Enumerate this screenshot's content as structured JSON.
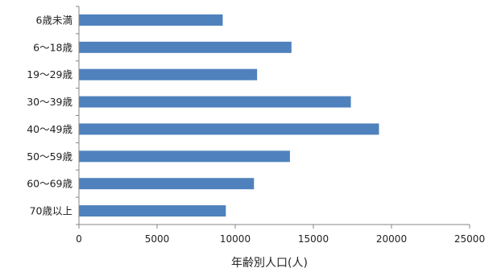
{
  "chart_data": {
    "type": "bar",
    "orientation": "horizontal",
    "categories": [
      "6歳未満",
      "6〜18歳",
      "19〜29歳",
      "30〜39歳",
      "40〜49歳",
      "50〜59歳",
      "60〜69歳",
      "70歳以上"
    ],
    "values": [
      9200,
      13600,
      11400,
      17400,
      19200,
      13500,
      11200,
      9400
    ],
    "xlabel": "年齢別人口(人)",
    "ylabel": "",
    "xlim": [
      0,
      25000
    ],
    "xticks": [
      "0",
      "5000",
      "10000",
      "15000",
      "20000",
      "25000"
    ],
    "grid": false,
    "legend": "none",
    "bar_color": "#4F81BD",
    "axis_color": "#868686"
  }
}
